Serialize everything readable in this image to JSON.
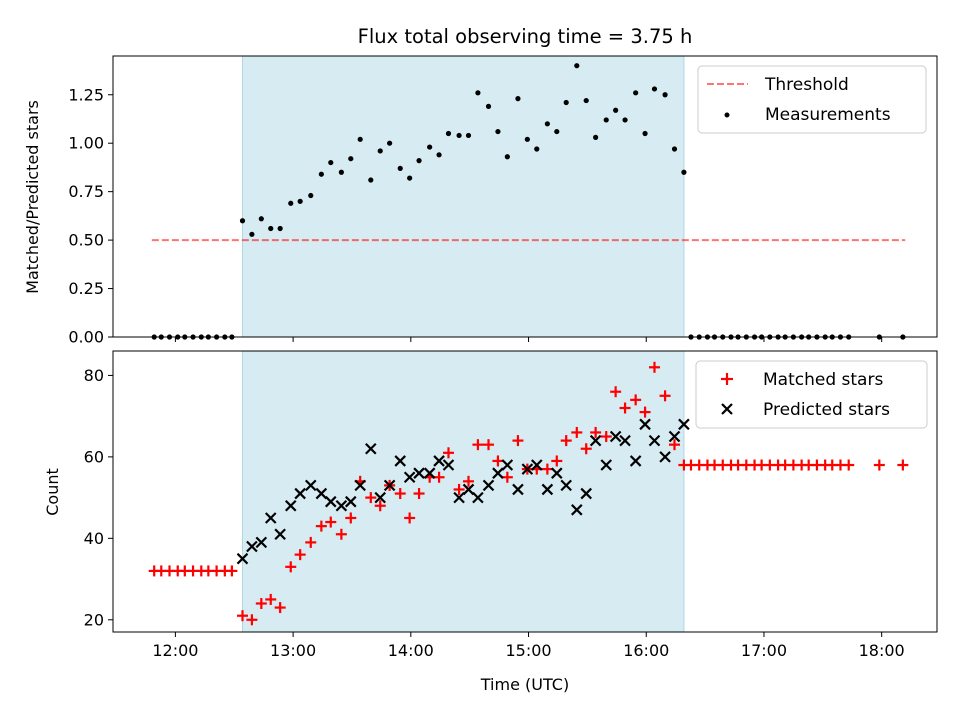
{
  "figure_title": "Flux total observing time = 3.75 h",
  "xlabel": "Time (UTC)",
  "colors": {
    "shade": "#add8e6",
    "threshold": "#ff0000",
    "measurements": "#000000",
    "matched": "#ff0000",
    "predicted": "#000000"
  },
  "chart_data": [
    {
      "type": "scatter",
      "ylabel": "Matched/Predicted stars",
      "xlim": [
        11.47,
        18.47
      ],
      "ylim": [
        0.0,
        1.45
      ],
      "yticks": [
        0.0,
        0.25,
        0.5,
        0.75,
        1.0,
        1.25
      ],
      "ytick_labels": [
        "0.00",
        "0.25",
        "0.50",
        "0.75",
        "1.00",
        "1.25"
      ],
      "shaded_x_range": [
        12.57,
        16.32
      ],
      "legend_position": "top-right",
      "threshold": {
        "name": "Threshold",
        "value": 0.5,
        "x_range": [
          11.8,
          18.2
        ]
      },
      "measurements": {
        "name": "Measurements",
        "x": [
          11.82,
          11.88,
          11.95,
          12.02,
          12.08,
          12.15,
          12.22,
          12.28,
          12.35,
          12.42,
          12.48,
          12.57,
          12.65,
          12.73,
          12.81,
          12.89,
          12.98,
          13.06,
          13.15,
          13.24,
          13.32,
          13.41,
          13.49,
          13.57,
          13.66,
          13.74,
          13.82,
          13.91,
          13.99,
          14.07,
          14.16,
          14.24,
          14.32,
          14.41,
          14.49,
          14.57,
          14.66,
          14.74,
          14.82,
          14.91,
          14.99,
          15.07,
          15.16,
          15.24,
          15.32,
          15.41,
          15.49,
          15.57,
          15.66,
          15.74,
          15.82,
          15.91,
          15.99,
          16.07,
          16.16,
          16.24,
          16.32,
          16.38,
          16.45,
          16.52,
          16.58,
          16.65,
          16.72,
          16.78,
          16.85,
          16.92,
          16.98,
          17.05,
          17.12,
          17.18,
          17.25,
          17.32,
          17.38,
          17.45,
          17.52,
          17.58,
          17.65,
          17.72,
          17.98,
          18.18
        ],
        "y": [
          0,
          0,
          0,
          0,
          0,
          0,
          0,
          0,
          0,
          0,
          0,
          0.6,
          0.53,
          0.61,
          0.56,
          0.56,
          0.69,
          0.7,
          0.73,
          0.84,
          0.9,
          0.85,
          0.92,
          1.02,
          0.81,
          0.96,
          1.0,
          0.87,
          0.82,
          0.91,
          0.98,
          0.94,
          1.05,
          1.04,
          1.04,
          1.26,
          1.19,
          1.06,
          0.93,
          1.23,
          1.02,
          0.97,
          1.1,
          1.06,
          1.21,
          1.4,
          1.22,
          1.03,
          1.12,
          1.17,
          1.12,
          1.26,
          1.05,
          1.28,
          1.25,
          0.97,
          0.85,
          0,
          0,
          0,
          0,
          0,
          0,
          0,
          0,
          0,
          0,
          0,
          0,
          0,
          0,
          0,
          0,
          0,
          0,
          0,
          0,
          0,
          0,
          0
        ]
      }
    },
    {
      "type": "scatter",
      "ylabel": "Count",
      "xlim": [
        11.47,
        18.47
      ],
      "ylim": [
        17,
        86
      ],
      "yticks": [
        20,
        40,
        60,
        80
      ],
      "ytick_labels": [
        "20",
        "40",
        "60",
        "80"
      ],
      "xticks": [
        12,
        13,
        14,
        15,
        16,
        17,
        18
      ],
      "xtick_labels": [
        "12:00",
        "13:00",
        "14:00",
        "15:00",
        "16:00",
        "17:00",
        "18:00"
      ],
      "shaded_x_range": [
        12.57,
        16.32
      ],
      "legend_position": "top-right",
      "series": [
        {
          "name": "Matched stars",
          "marker": "plus",
          "x": [
            11.82,
            11.88,
            11.95,
            12.02,
            12.08,
            12.15,
            12.22,
            12.28,
            12.35,
            12.42,
            12.48,
            12.57,
            12.65,
            12.73,
            12.81,
            12.89,
            12.98,
            13.06,
            13.15,
            13.24,
            13.32,
            13.41,
            13.49,
            13.57,
            13.66,
            13.74,
            13.82,
            13.91,
            13.99,
            14.07,
            14.16,
            14.24,
            14.32,
            14.41,
            14.49,
            14.57,
            14.66,
            14.74,
            14.82,
            14.91,
            14.99,
            15.07,
            15.16,
            15.24,
            15.32,
            15.41,
            15.49,
            15.57,
            15.66,
            15.74,
            15.82,
            15.91,
            15.99,
            16.07,
            16.16,
            16.24,
            16.32,
            16.38,
            16.45,
            16.52,
            16.58,
            16.65,
            16.72,
            16.78,
            16.85,
            16.92,
            16.98,
            17.05,
            17.12,
            17.18,
            17.25,
            17.32,
            17.38,
            17.45,
            17.52,
            17.58,
            17.65,
            17.72,
            17.98,
            18.18
          ],
          "y": [
            32,
            32,
            32,
            32,
            32,
            32,
            32,
            32,
            32,
            32,
            32,
            21,
            20,
            24,
            25,
            23,
            33,
            36,
            39,
            43,
            44,
            41,
            45,
            54,
            50,
            48,
            53,
            51,
            45,
            51,
            55,
            55,
            61,
            52,
            54,
            63,
            63,
            59,
            55,
            64,
            57,
            57,
            57,
            59,
            64,
            66,
            62,
            66,
            65,
            76,
            72,
            74,
            71,
            82,
            75,
            63,
            58,
            58,
            58,
            58,
            58,
            58,
            58,
            58,
            58,
            58,
            58,
            58,
            58,
            58,
            58,
            58,
            58,
            58,
            58,
            58,
            58,
            58,
            58,
            58
          ]
        },
        {
          "name": "Predicted stars",
          "marker": "x",
          "x": [
            12.57,
            12.65,
            12.73,
            12.81,
            12.89,
            12.98,
            13.06,
            13.15,
            13.24,
            13.32,
            13.41,
            13.49,
            13.57,
            13.66,
            13.74,
            13.82,
            13.91,
            13.99,
            14.07,
            14.16,
            14.24,
            14.32,
            14.41,
            14.49,
            14.57,
            14.66,
            14.74,
            14.82,
            14.91,
            14.99,
            15.07,
            15.16,
            15.24,
            15.32,
            15.41,
            15.49,
            15.57,
            15.66,
            15.74,
            15.82,
            15.91,
            15.99,
            16.07,
            16.16,
            16.24,
            16.32
          ],
          "y": [
            35,
            38,
            39,
            45,
            41,
            48,
            51,
            53,
            51,
            49,
            48,
            49,
            53,
            62,
            50,
            53,
            59,
            55,
            56,
            56,
            59,
            58,
            50,
            52,
            50,
            53,
            56,
            58,
            52,
            57,
            58,
            52,
            56,
            53,
            47,
            51,
            64,
            58,
            65,
            64,
            59,
            68,
            64,
            60,
            65,
            68
          ]
        }
      ]
    }
  ]
}
